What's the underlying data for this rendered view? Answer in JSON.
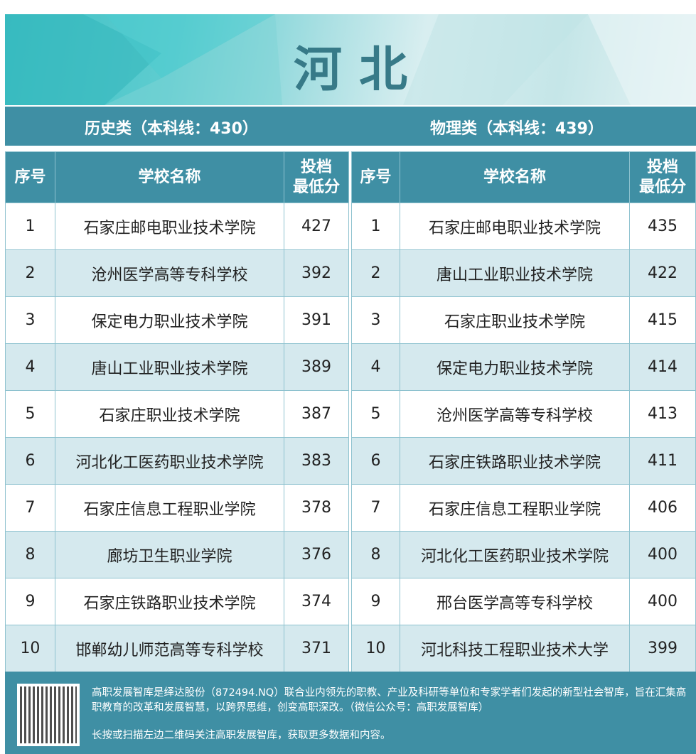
{
  "title": "河北",
  "history": {
    "label": "历史类（本科线：430）",
    "headers": [
      "序号",
      "学校名称",
      "投档",
      "最低分"
    ],
    "rows": [
      [
        "1",
        "石家庄邮电职业技术学院",
        "427"
      ],
      [
        "2",
        "沧州医学高等专科学校",
        "392"
      ],
      [
        "3",
        "保定电力职业技术学院",
        "391"
      ],
      [
        "4",
        "唐山工业职业技术学院",
        "389"
      ],
      [
        "5",
        "石家庄职业技术学院",
        "387"
      ],
      [
        "6",
        "河北化工医药职业技术学院",
        "383"
      ],
      [
        "7",
        "石家庄信息工程职业学院",
        "378"
      ],
      [
        "8",
        "廊坊卫生职业学院",
        "376"
      ],
      [
        "9",
        "石家庄铁路职业技术学院",
        "374"
      ],
      [
        "10",
        "邯郸幼儿师范高等专科学校",
        "371"
      ]
    ]
  },
  "physics": {
    "label": "物理类（本科线：439）",
    "headers": [
      "序号",
      "学校名称",
      "投档",
      "最低分"
    ],
    "rows": [
      [
        "1",
        "石家庄邮电职业技术学院",
        "435"
      ],
      [
        "2",
        "唐山工业职业技术学院",
        "422"
      ],
      [
        "3",
        "石家庄职业技术学院",
        "415"
      ],
      [
        "4",
        "保定电力职业技术学院",
        "414"
      ],
      [
        "5",
        "沧州医学高等专科学校",
        "413"
      ],
      [
        "6",
        "石家庄铁路职业技术学院",
        "411"
      ],
      [
        "7",
        "石家庄信息工程职业学院",
        "406"
      ],
      [
        "8",
        "河北化工医药职业技术学院",
        "400"
      ],
      [
        "9",
        "邢台医学高等专科学校",
        "400"
      ],
      [
        "10",
        "河北科技工程职业技术大学",
        "399"
      ]
    ]
  },
  "footer": {
    "text1": "高职发展智库是绎达股份（872494.NQ）联合业内领先的职教、产业及科研等单位和专家学者们发起的新型社会智库，旨在汇集高职教育的改革和发展智慧，以跨界思维，创变高职深改。（微信公众号：高职发展智库）",
    "text2": "长按或扫描左边二维码关注高职发展智库，获取更多数据和内容。"
  },
  "watermark": "高职发展智库",
  "colors": {
    "header": "#3f8fa4",
    "row_alt": "#d5e9ee",
    "title": "#377a88"
  }
}
